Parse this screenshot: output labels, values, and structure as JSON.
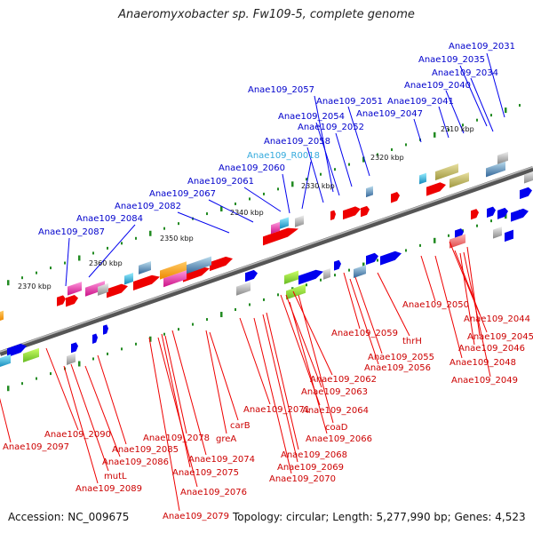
{
  "title": "Anaeromyxobacter sp. Fw109-5, complete genome",
  "footer": {
    "accession": "Accession: NC_009675",
    "summary": "Topology: circular; Length: 5,277,990 bp; Genes: 4,523"
  },
  "colors": {
    "forward_label": "#0000cc",
    "reverse_label": "#cc0000",
    "rna_label": "#33aadd",
    "backbone": "#777777",
    "forward_gene": "#0000ee",
    "reverse_gene": "#ee0000",
    "tick": "#228b22"
  },
  "kbp_labels": [
    "2310 kbp",
    "2320 kbp",
    "2330 kbp",
    "2340 kbp",
    "2350 kbp",
    "2360 kbp",
    "2370 kbp"
  ],
  "forward_genes": [
    "Anae109_2031",
    "Anae109_2035",
    "Anae109_2034",
    "Anae109_2040",
    "Anae109_2041",
    "Anae109_2047",
    "Anae109_2051",
    "Anae109_2052",
    "Anae109_2057",
    "Anae109_2054",
    "Anae109_2058",
    "Anae109_R0018",
    "Anae109_2060",
    "Anae109_2061",
    "Anae109_2067",
    "Anae109_2082",
    "Anae109_2084",
    "Anae109_2087"
  ],
  "reverse_genes": [
    "Anae109_2050",
    "Anae109_2044",
    "Anae109_2045",
    "Anae109_2046",
    "Anae109_2059",
    "thrH",
    "Anae109_2048",
    "Anae109_2055",
    "Anae109_2056",
    "Anae109_2049",
    "Anae109_2062",
    "Anae109_2063",
    "Anae109_2064",
    "Anae109_2071",
    "coaD",
    "carB",
    "Anae109_2066",
    "Anae109_2090",
    "Anae109_2078",
    "greA",
    "Anae109_2097",
    "Anae109_2085",
    "Anae109_2068",
    "Anae109_2086",
    "Anae109_2074",
    "Anae109_2069",
    "Anae109_2075",
    "Anae109_2070",
    "mutL",
    "Anae109_2089",
    "Anae109_2076",
    "Anae109_2079"
  ]
}
